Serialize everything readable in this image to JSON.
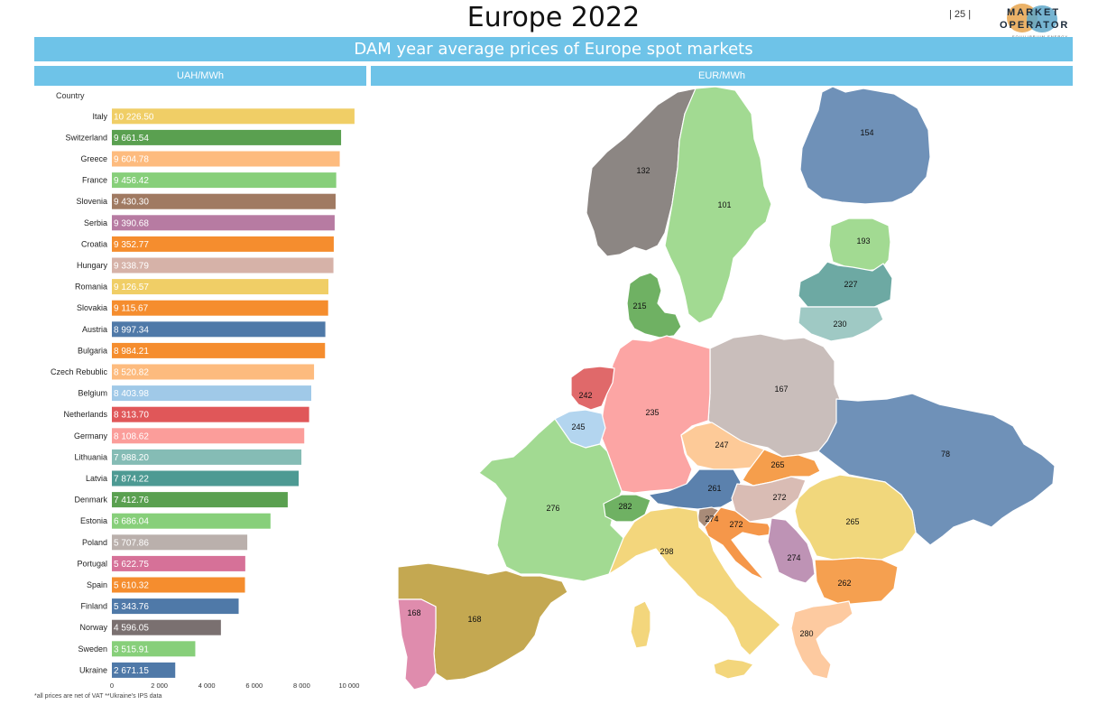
{
  "page": {
    "title": "Europe 2022",
    "page_number": "| 25 |",
    "banner": "DAM year average prices of Europe spot markets",
    "left_header": "UAH/MWh",
    "right_header": "EUR/MWh",
    "footnote": "*all prices are net of VAT **Ukraine's IPS data",
    "logo": {
      "line1": "MARKET",
      "line2": "OPERATOR",
      "tagline": "EQUILIBRIUM ENERGY"
    }
  },
  "chart_data": {
    "type": "bar",
    "orientation": "horizontal",
    "category_header": "Country",
    "categories": [
      "Italy",
      "Switzerland",
      "Greece",
      "France",
      "Slovenia",
      "Serbia",
      "Croatia",
      "Hungary",
      "Romania",
      "Slovakia",
      "Austria",
      "Bulgaria",
      "Czech Rebublic",
      "Belgium",
      "Netherlands",
      "Germany",
      "Lithuania",
      "Latvia",
      "Denmark",
      "Estonia",
      "Poland",
      "Portugal",
      "Spain",
      "Finland",
      "Norway",
      "Sweden",
      "Ukraine"
    ],
    "values": [
      10226.5,
      9661.54,
      9604.78,
      9456.42,
      9430.3,
      9390.68,
      9352.77,
      9338.79,
      9126.57,
      9115.67,
      8997.34,
      8984.21,
      8520.82,
      8403.98,
      8313.7,
      8108.62,
      7988.2,
      7874.22,
      7412.76,
      6686.04,
      5707.86,
      5622.75,
      5610.32,
      5343.76,
      4596.05,
      3515.91,
      2671.15
    ],
    "value_labels": [
      "10 226.50",
      "9 661.54",
      "9 604.78",
      "9 456.42",
      "9 430.30",
      "9 390.68",
      "9 352.77",
      "9 338.79",
      "9 126.57",
      "9 115.67",
      "8 997.34",
      "8 984.21",
      "8 520.82",
      "8 403.98",
      "8 313.70",
      "8 108.62",
      "7 988.20",
      "7 874.22",
      "7 412.76",
      "6 686.04",
      "5 707.86",
      "5 622.75",
      "5 610.32",
      "5 343.76",
      "4 596.05",
      "3 515.91",
      "2 671.15"
    ],
    "colors": [
      "#f0ce66",
      "#5aa050",
      "#fdbb7e",
      "#87cf7a",
      "#a07a62",
      "#b77ba2",
      "#f58d2e",
      "#d6b2a8",
      "#f0ce66",
      "#f58d2e",
      "#4f79a8",
      "#f58d2e",
      "#fdbb7e",
      "#a0c9e8",
      "#e05759",
      "#fb9d9a",
      "#85bcb5",
      "#4d9a93",
      "#5aa050",
      "#87cf7a",
      "#bab0ac",
      "#d67198",
      "#f58d2e",
      "#4f79a8",
      "#7a7070",
      "#87cf7a",
      "#4f79a8"
    ],
    "xticks": [
      0,
      2000,
      4000,
      6000,
      8000,
      10000
    ],
    "xtick_labels": [
      "0",
      "2 000",
      "4 000",
      "6 000",
      "8 000",
      "10 000"
    ],
    "xlim": [
      0,
      10800
    ],
    "ylabel": "",
    "xlabel": ""
  },
  "map_data": {
    "regions": [
      {
        "name": "Norway",
        "value": "132",
        "color": "#8c8683"
      },
      {
        "name": "Sweden",
        "value": "101",
        "color": "#a2da92"
      },
      {
        "name": "Finland",
        "value": "154",
        "color": "#6f91b8"
      },
      {
        "name": "Estonia",
        "value": "193",
        "color": "#a2da92"
      },
      {
        "name": "Latvia",
        "value": "227",
        "color": "#6da9a3"
      },
      {
        "name": "Lithuania",
        "value": "230",
        "color": "#9fc9c4"
      },
      {
        "name": "Denmark",
        "value": "215",
        "color": "#6fb163"
      },
      {
        "name": "Poland",
        "value": "167",
        "color": "#c9bebb"
      },
      {
        "name": "Ukraine",
        "value": "78",
        "color": "#6f91b8"
      },
      {
        "name": "Germany",
        "value": "235",
        "color": "#fca5a4"
      },
      {
        "name": "Netherlands",
        "value": "242",
        "color": "#e0696a"
      },
      {
        "name": "Belgium",
        "value": "245",
        "color": "#b3d5ef"
      },
      {
        "name": "Czech Rebublic",
        "value": "247",
        "color": "#fdca98"
      },
      {
        "name": "Slovakia",
        "value": "265",
        "color": "#f59e4c"
      },
      {
        "name": "Austria",
        "value": "261",
        "color": "#5b81ad"
      },
      {
        "name": "Hungary",
        "value": "272",
        "color": "#d9bcb4"
      },
      {
        "name": "Romania",
        "value": "265",
        "color": "#f1d77c"
      },
      {
        "name": "France",
        "value": "276",
        "color": "#a2da92"
      },
      {
        "name": "Switzerland",
        "value": "282",
        "color": "#6fb163"
      },
      {
        "name": "Slovenia",
        "value": "274",
        "color": "#a88b78"
      },
      {
        "name": "Croatia",
        "value": "272",
        "color": "#f5974a"
      },
      {
        "name": "Serbia",
        "value": "274",
        "color": "#be93b5"
      },
      {
        "name": "Bulgaria",
        "value": "262",
        "color": "#f5a050"
      },
      {
        "name": "Italy",
        "value": "298",
        "color": "#f3d67c"
      },
      {
        "name": "Greece",
        "value": "280",
        "color": "#fdcaa0"
      },
      {
        "name": "Spain",
        "value": "168",
        "color": "#c4a851"
      },
      {
        "name": "Portugal",
        "value": "168",
        "color": "#df8cad"
      }
    ]
  }
}
